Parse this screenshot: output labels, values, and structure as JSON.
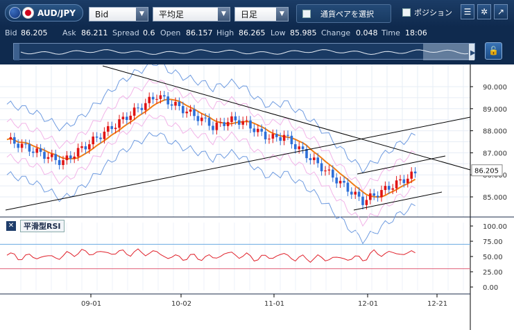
{
  "toolbar": {
    "pair": "AUD/JPY",
    "price_type": "Bid",
    "indicator": "平均足",
    "period": "日足",
    "pair_select": "通貨ペアを選択",
    "position": "ポジション",
    "icons": [
      "menu-icon",
      "gear-icon",
      "popout-icon"
    ]
  },
  "quotes": {
    "bid_label": "Bid",
    "bid": "86.205",
    "ask_label": "Ask",
    "ask": "86.211",
    "spread_label": "Spread",
    "spread": "0.6",
    "open_label": "Open",
    "open": "86.157",
    "high_label": "High",
    "high": "86.265",
    "low_label": "Low",
    "low": "85.985",
    "change_label": "Change",
    "change": "0.048",
    "time_label": "Time",
    "time": "18:06"
  },
  "chart_data": {
    "type": "candlestick",
    "current_price": "86.205",
    "y_ticks": [
      "90.000",
      "89.000",
      "88.000",
      "87.000",
      "86.000",
      "85.000"
    ],
    "x_ticks": [
      "09-01",
      "10-02",
      "11-01",
      "12-01",
      "12-21"
    ],
    "indicators": [
      "Bollinger Bands",
      "Moving Average"
    ],
    "colors": {
      "up": "#e01515",
      "down": "#2d6fd8",
      "ma": "#f07d16",
      "bb_outer": "#6e9be0",
      "bb_inner": "#f2b4e8",
      "price_tag": "#ffffff"
    }
  },
  "rsi": {
    "label": "平滑型RSI",
    "close_label": "✕",
    "ticks": [
      "100.00",
      "75.00",
      "50.00",
      "25.00",
      "0.00"
    ],
    "upper_level": 70,
    "lower_level": 30,
    "colors": {
      "line": "#e0202a",
      "upper": "#6aa9e0",
      "lower": "#e0607a"
    }
  }
}
